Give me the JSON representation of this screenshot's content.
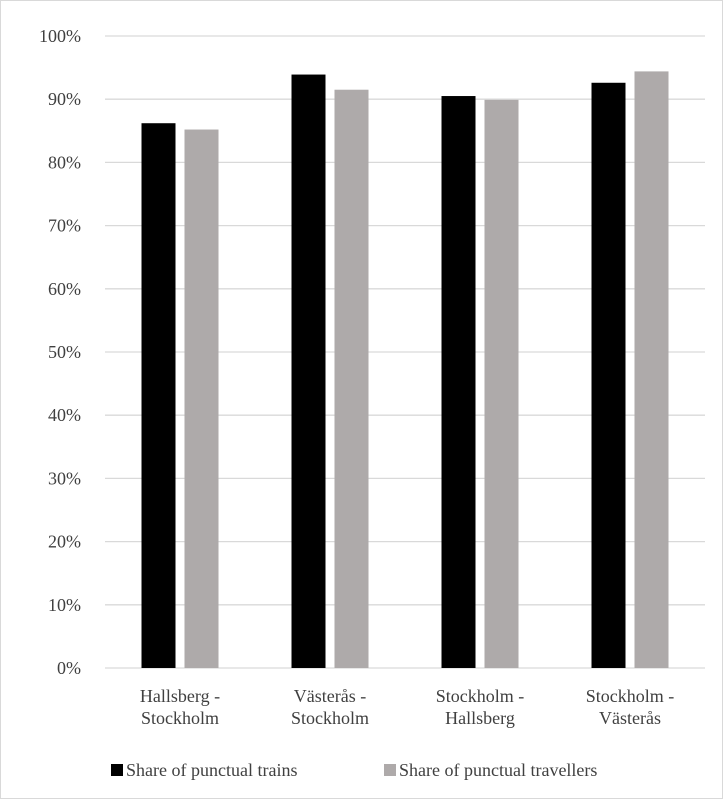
{
  "chart_data": {
    "type": "bar",
    "categories": [
      [
        "Hallsberg -",
        "Stockholm"
      ],
      [
        "Västerås -",
        "Stockholm"
      ],
      [
        "Stockholm -",
        "Hallsberg"
      ],
      [
        "Stockholm -",
        "Västerås"
      ]
    ],
    "series": [
      {
        "name": "Share of punctual trains",
        "values": [
          0.862,
          0.939,
          0.905,
          0.926
        ],
        "color": "#000000"
      },
      {
        "name": "Share of punctual travellers",
        "values": [
          0.852,
          0.915,
          0.899,
          0.944
        ],
        "color": "#aeaaaa"
      }
    ],
    "y_ticks": [
      "0%",
      "10%",
      "20%",
      "30%",
      "40%",
      "50%",
      "60%",
      "70%",
      "80%",
      "90%",
      "100%"
    ],
    "ylim": [
      0,
      1
    ],
    "title": "",
    "xlabel": "",
    "ylabel": "",
    "grid": true,
    "legend_position": "bottom",
    "gridline_color": "#d9d9d9"
  }
}
